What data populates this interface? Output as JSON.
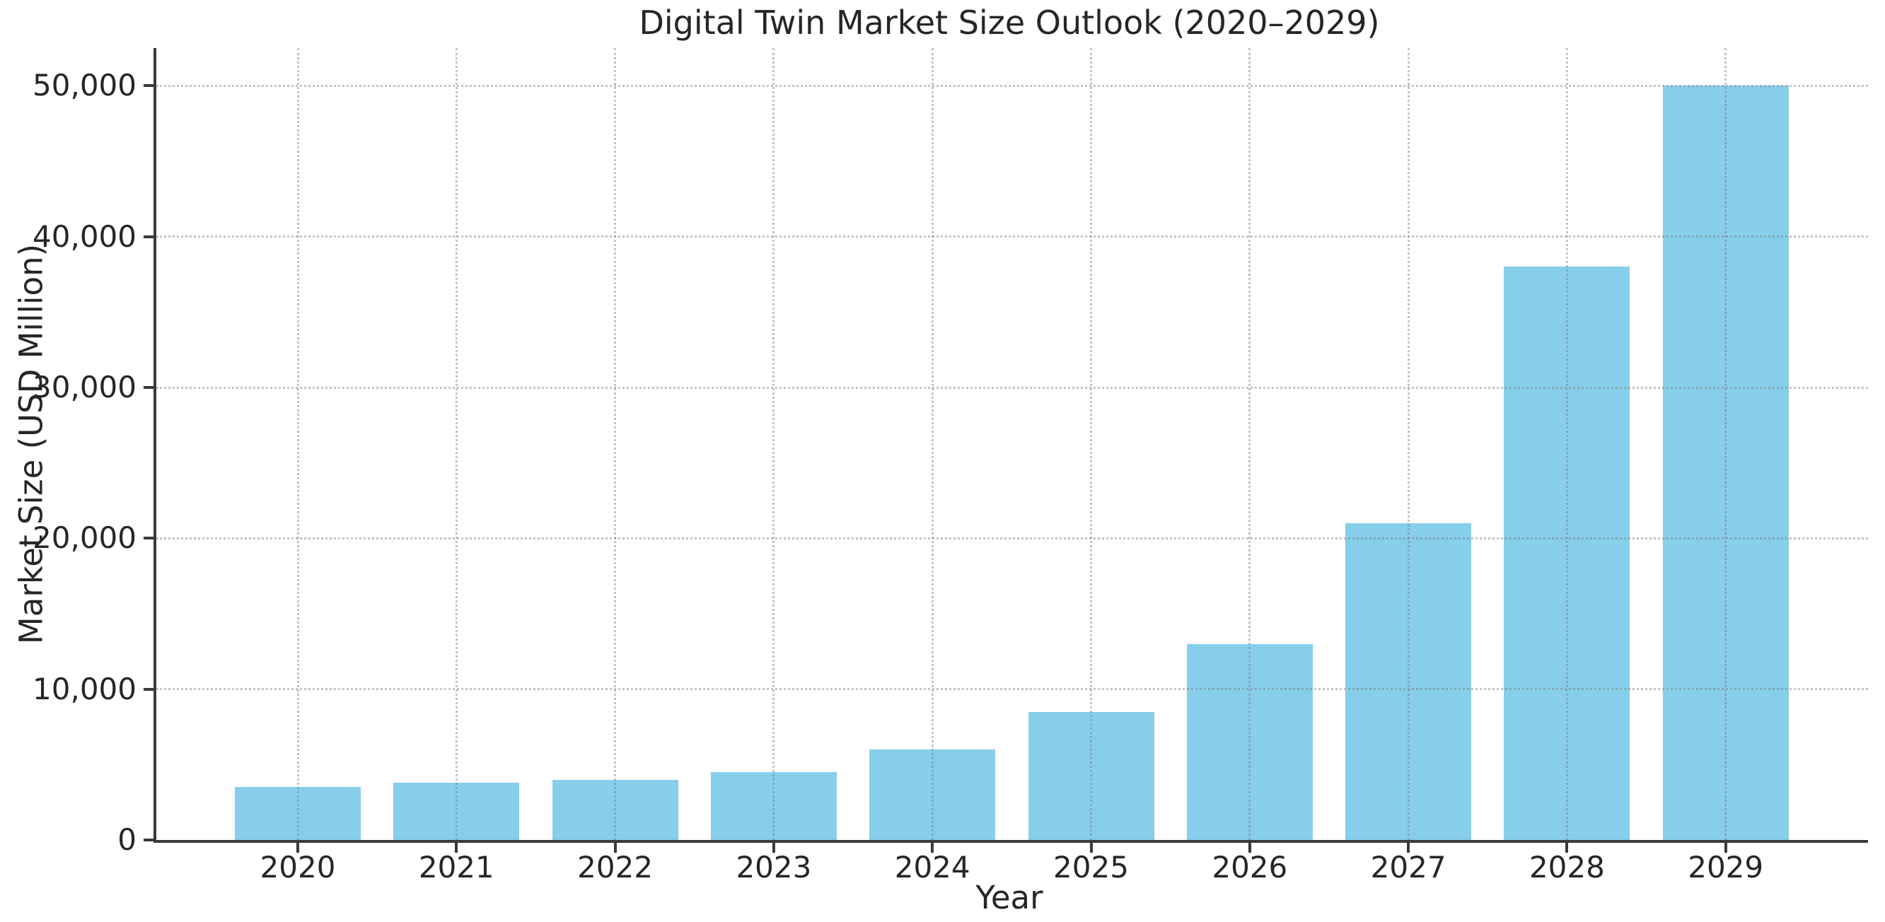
{
  "chart_data": {
    "type": "bar",
    "title": "Digital Twin Market Size Outlook (2020–2029)",
    "xlabel": "Year",
    "ylabel": "Market Size (USD Million)",
    "categories": [
      "2020",
      "2021",
      "2022",
      "2023",
      "2024",
      "2025",
      "2026",
      "2027",
      "2028",
      "2029"
    ],
    "values": [
      3500,
      3800,
      4000,
      4500,
      6000,
      8500,
      13000,
      21000,
      38000,
      50000
    ],
    "ylim": [
      0,
      52500
    ],
    "yticks": [
      {
        "value": 0,
        "label": "0"
      },
      {
        "value": 10000,
        "label": "10,000"
      },
      {
        "value": 20000,
        "label": "20,000"
      },
      {
        "value": 30000,
        "label": "30,000"
      },
      {
        "value": 40000,
        "label": "40,000"
      },
      {
        "value": 50000,
        "label": "50,000"
      }
    ],
    "legend": "none",
    "grid": "dotted gridlines on both axes, drawn over bars",
    "bar_color": "#87CEEB",
    "axis_color": "#3a3a3a",
    "text_color": "#262626",
    "grid_color": "#7d7d7d",
    "background_color": "#ffffff"
  }
}
